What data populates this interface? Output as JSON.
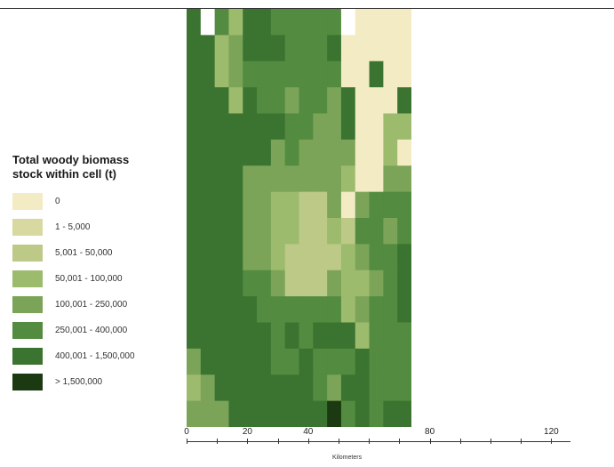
{
  "legend": {
    "title": "Total woody biomass stock within cell (t)",
    "classes": [
      {
        "label": "0",
        "color": "#f3ebc4"
      },
      {
        "label": "1 - 5,000",
        "color": "#d8d9a0"
      },
      {
        "label": "5,001 - 50,000",
        "color": "#bcc987"
      },
      {
        "label": "50,001 - 100,000",
        "color": "#9dbb6d"
      },
      {
        "label": "100,001 - 250,000",
        "color": "#7ba459"
      },
      {
        "label": "250,001 - 400,000",
        "color": "#538b40"
      },
      {
        "label": "400,001 - 1,500,000",
        "color": "#3b7430"
      },
      {
        "label": "> 1,500,000",
        "color": "#1b3a12"
      }
    ]
  },
  "map": {
    "grid_cols": 16,
    "grid_rows": 16,
    "nodata_color": "#ffffff",
    "cells": [
      "6.536655555.00000",
      "6634666555600000",
      "6634555555500600",
      "6663655455460006",
      "6666666554460033",
      "6666664544440030",
      "6666444444430044",
      "6666443322404555",
      "6666443322325545",
      "6666443222234556",
      "6666554222433456",
      "6666655555534556",
      "6666665656663555",
      "4666665565556555",
      "3466666665466555",
      "4446666666756566"
    ]
  },
  "scale_bar": {
    "unit": "Kilometers",
    "ticks": [
      "0",
      "20",
      "40",
      "80",
      "120"
    ]
  }
}
